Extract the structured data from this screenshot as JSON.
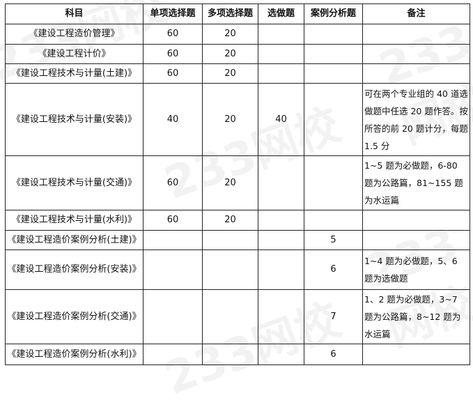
{
  "headers": [
    "科目",
    "单项选择题",
    "多项选择题",
    "选做题",
    "案例分析题",
    "备注"
  ],
  "rows": [
    {
      "subject": "《建设工程造价管理》",
      "single": "60",
      "multi": "20",
      "optional": "",
      "case": "",
      "note": ""
    },
    {
      "subject": "《建设工程计价》",
      "single": "60",
      "multi": "20",
      "optional": "",
      "case": "",
      "note": ""
    },
    {
      "subject": "《建设工程技术与计量(土建)》",
      "single": "60",
      "multi": "20",
      "optional": "",
      "case": "",
      "note": ""
    },
    {
      "subject": "《建设工程技术与计量(安装)》",
      "single": "40",
      "multi": "20",
      "optional": "40",
      "case": "",
      "note": "可在两个专业组的 40 道选做题中任选 20 题作答。按所答的前 20 题计分，每题 1.5 分"
    },
    {
      "subject": "《建设工程技术与计量(交通)》",
      "single": "60",
      "multi": "20",
      "optional": "",
      "case": "",
      "note": "1~5 题为必做题，6-80 题为公路篇，81~155 题为水运篇"
    },
    {
      "subject": "《建设工程技术与计量(水利)》",
      "single": "60",
      "multi": "20",
      "optional": "",
      "case": "",
      "note": ""
    },
    {
      "subject": "《建设工程造价案例分析(土建)》",
      "single": "",
      "multi": "",
      "optional": "",
      "case": "5",
      "note": ""
    },
    {
      "subject": "《建设工程造价案例分析(安装)》",
      "single": "",
      "multi": "",
      "optional": "",
      "case": "6",
      "note": "1~4 题为必做题，5、6 题为选做题"
    },
    {
      "subject": "《建设工程造价案例分析(交通)》",
      "single": "",
      "multi": "",
      "optional": "",
      "case": "7",
      "note": "1、2 题为必做题，3~7 题为公路篇，8~12 题为水运篇"
    },
    {
      "subject": "《建设工程造价案例分析(水利)》",
      "single": "",
      "multi": "",
      "optional": "",
      "case": "6",
      "note": ""
    }
  ],
  "watermark": "233网校"
}
